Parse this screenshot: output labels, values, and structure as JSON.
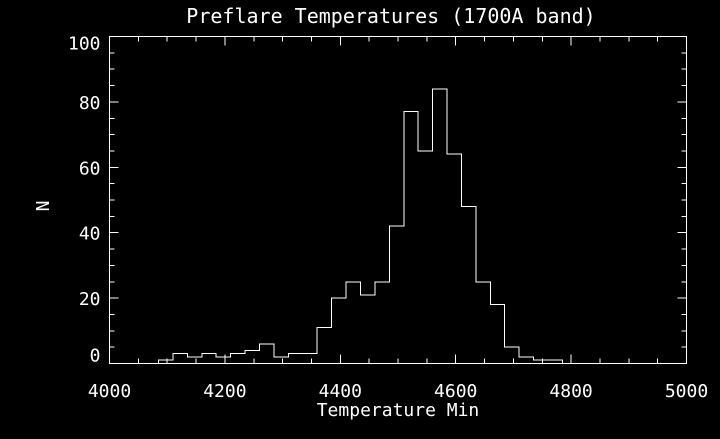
{
  "chart_data": {
    "type": "histogram",
    "title": "Preflare Temperatures (1700A band)",
    "xlabel": "Temperature Min",
    "ylabel": "N",
    "xlim": [
      4000,
      5000
    ],
    "ylim": [
      0,
      100
    ],
    "x_major_tick_values": [
      4000,
      4200,
      4400,
      4600,
      4800,
      5000
    ],
    "x_major_tick_labels": [
      "4000",
      "4200",
      "4400",
      "4600",
      "4800",
      "5000"
    ],
    "x_minor_tick_interval": 50,
    "y_major_tick_values": [
      0,
      20,
      40,
      60,
      80,
      100
    ],
    "y_major_tick_labels": [
      "0",
      "20",
      "40",
      "60",
      "80",
      "100"
    ],
    "y_minor_tick_interval": 5,
    "grid": false,
    "legend": null,
    "bins": {
      "start": 4085,
      "width": 25
    },
    "counts": [
      1,
      3,
      2,
      3,
      2,
      3,
      4,
      6,
      2,
      3,
      3,
      11,
      20,
      25,
      21,
      25,
      42,
      77,
      65,
      84,
      64,
      48,
      25,
      18,
      5,
      2,
      1,
      1
    ],
    "colors": {
      "background": "#000000",
      "foreground": "#ffffff"
    }
  }
}
